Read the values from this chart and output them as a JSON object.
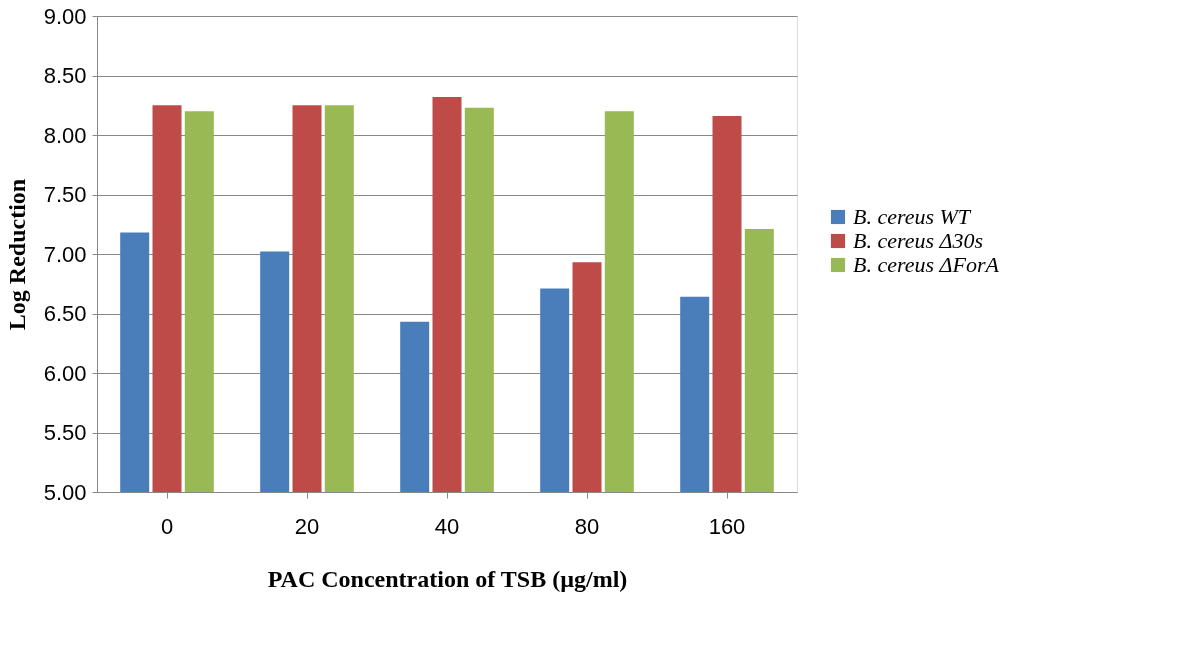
{
  "chart_data": {
    "type": "bar",
    "xlabel": "PAC Concentration of TSB (µg/ml)",
    "ylabel": "Log Reduction",
    "categories": [
      "0",
      "20",
      "40",
      "80",
      "160"
    ],
    "series": [
      {
        "name": "B. cereus WT",
        "color": "#4a7ebb",
        "values": [
          7.18,
          7.02,
          6.43,
          6.71,
          6.64
        ]
      },
      {
        "name": "B. cereus Δ30s",
        "color": "#be4b48",
        "values": [
          8.25,
          8.25,
          8.32,
          6.93,
          8.16
        ]
      },
      {
        "name": "B. cereus ΔForA",
        "color": "#98b954",
        "values": [
          8.2,
          8.25,
          8.23,
          8.2,
          7.21
        ]
      }
    ],
    "ylim": [
      5,
      9
    ],
    "yticks": [
      {
        "value": 5,
        "label": "5.00"
      },
      {
        "value": 5.5,
        "label": "5.50"
      },
      {
        "value": 6,
        "label": "6.00"
      },
      {
        "value": 6.5,
        "label": "6.50"
      },
      {
        "value": 7,
        "label": "7.00"
      },
      {
        "value": 7.5,
        "label": "7.50"
      },
      {
        "value": 8,
        "label": "8.00"
      },
      {
        "value": 8.5,
        "label": "8.50"
      },
      {
        "value": 9,
        "label": "9.00"
      }
    ],
    "grid": "y",
    "legend": "right"
  }
}
